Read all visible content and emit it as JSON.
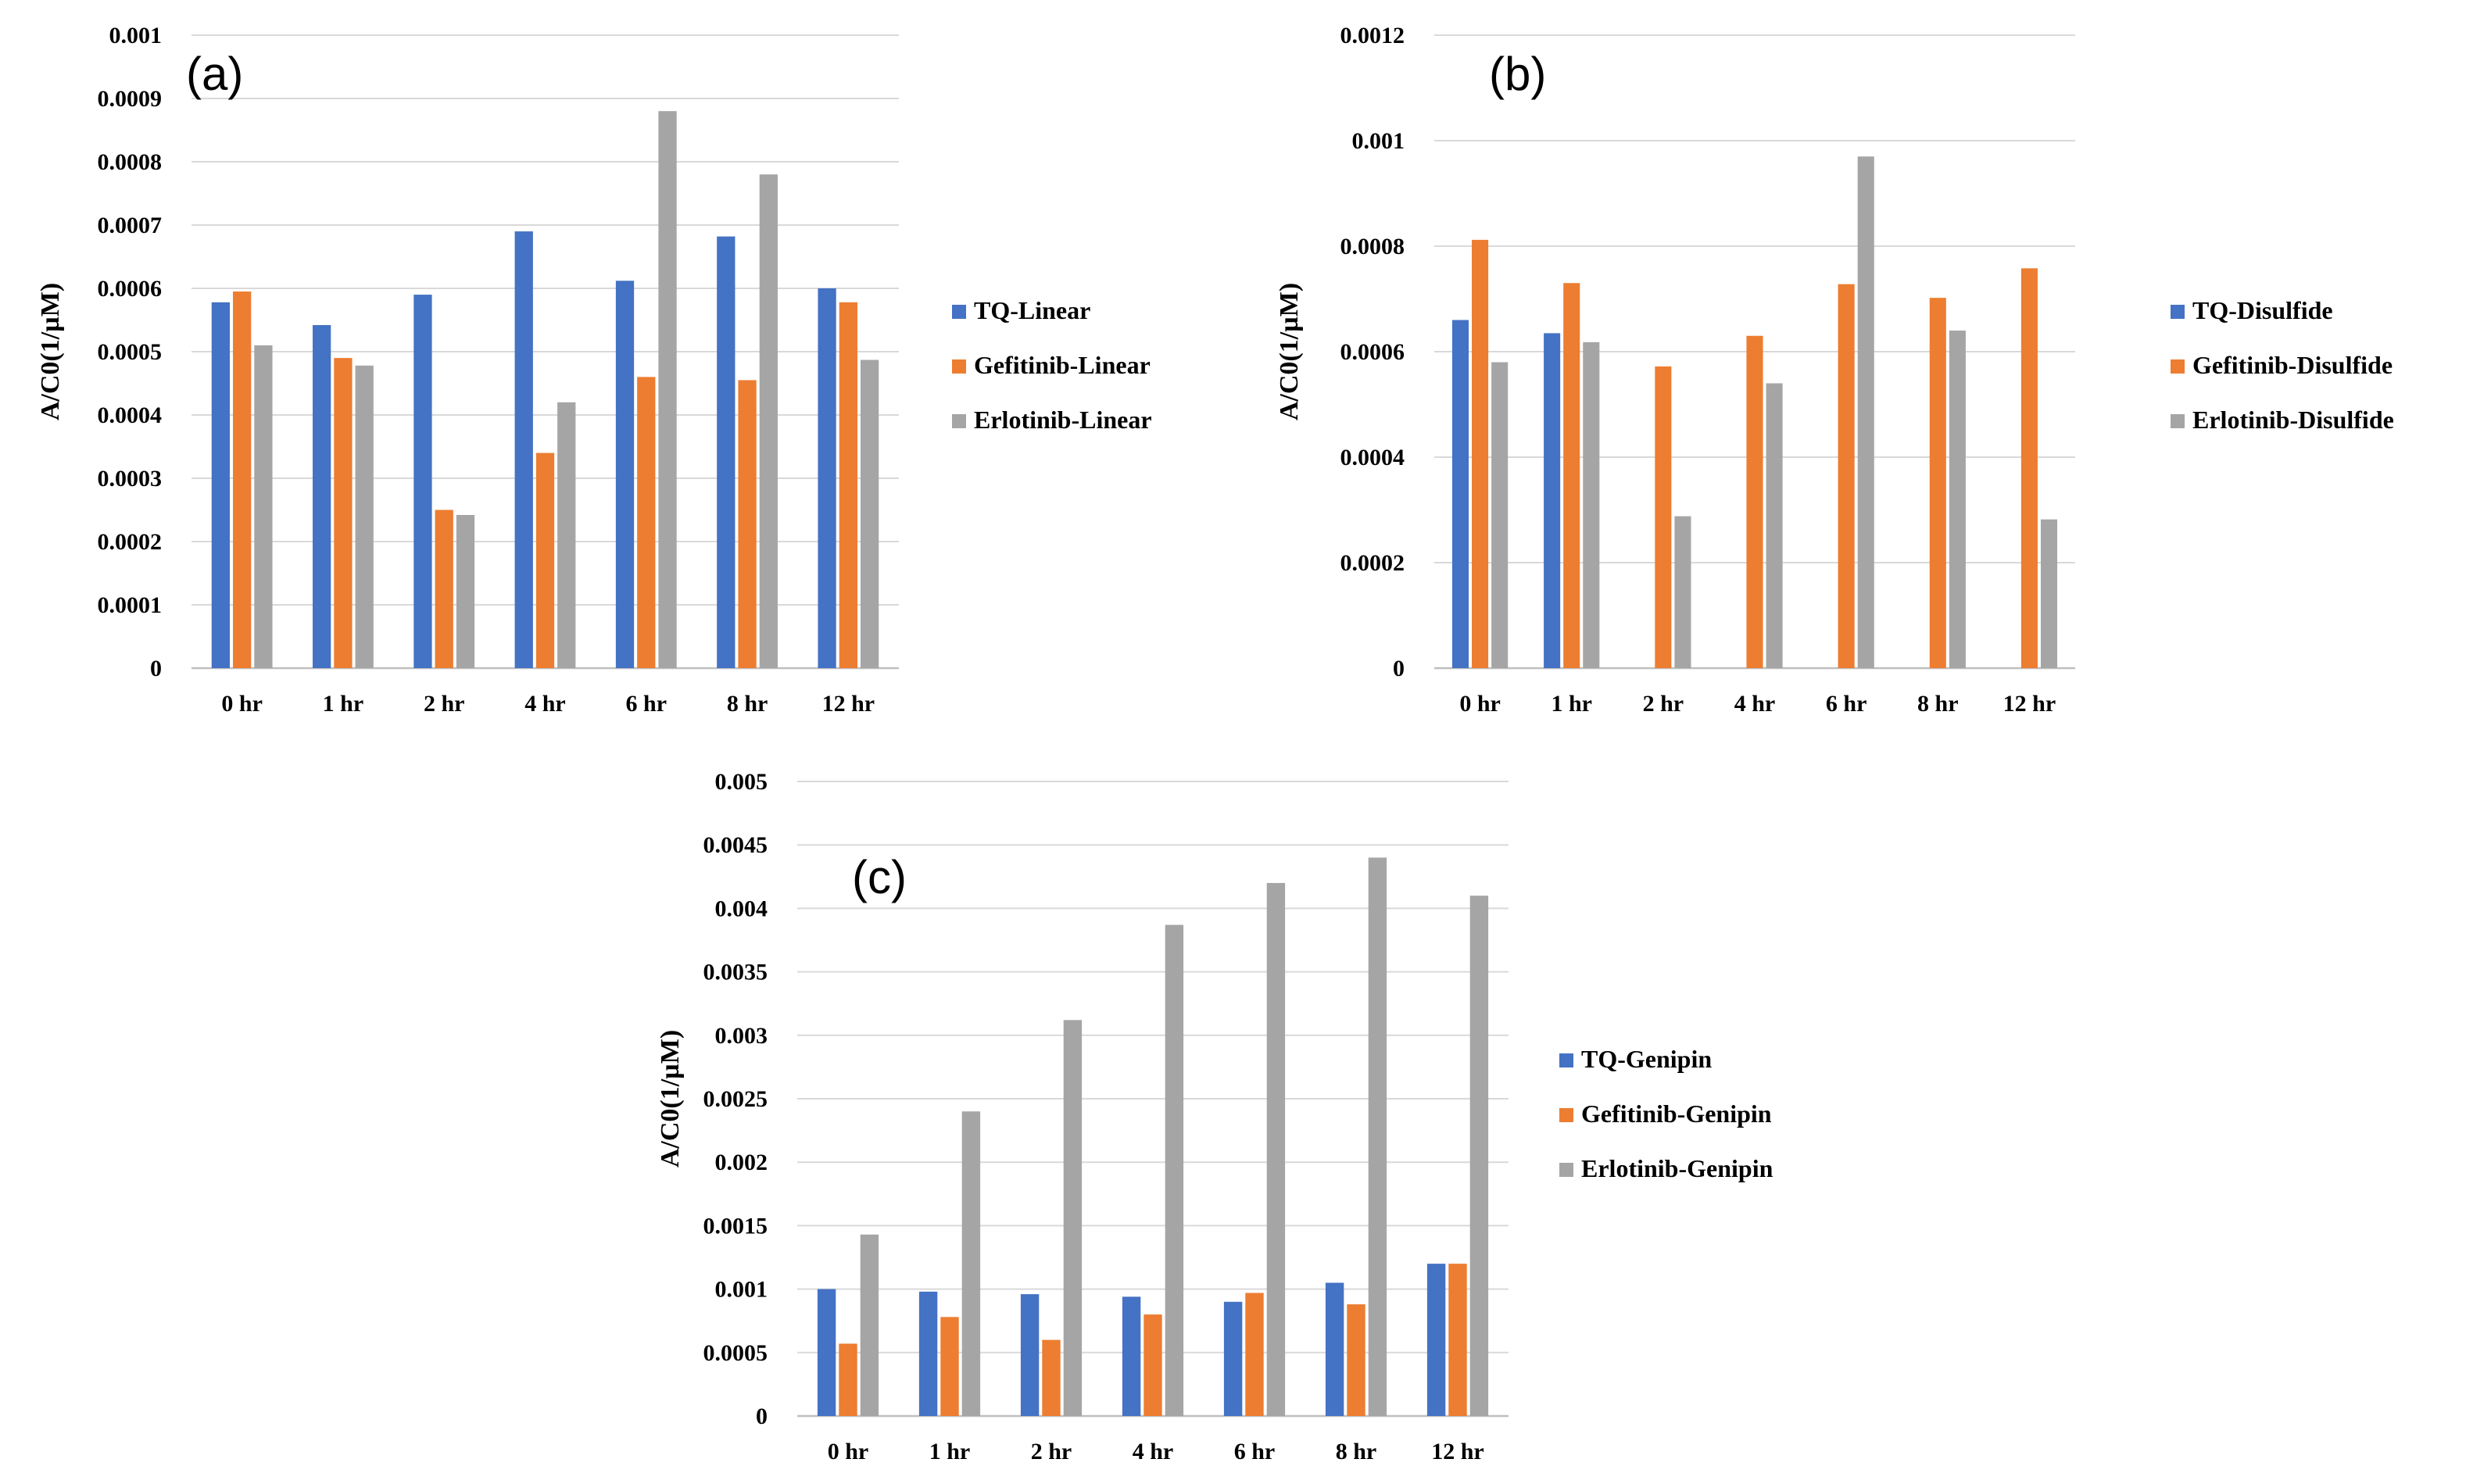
{
  "colors": {
    "tq": "#4472c4",
    "gefitinib": "#ed7d31",
    "erlotinib": "#a5a5a5"
  },
  "chart_data": [
    {
      "type": "bar",
      "panel_label": "(a)",
      "ylabel": "A/C0(1/µM)",
      "categories": [
        "0 hr",
        "1 hr",
        "2 hr",
        "4 hr",
        "6 hr",
        "8 hr",
        "12 hr"
      ],
      "ylim": [
        0,
        0.001
      ],
      "yticks": [
        "0",
        "0.0001",
        "0.0002",
        "0.0003",
        "0.0004",
        "0.0005",
        "0.0006",
        "0.0007",
        "0.0008",
        "0.0009",
        "0.001"
      ],
      "grid": true,
      "legend_position": "right",
      "series": [
        {
          "name": "TQ-Linear",
          "color": "#4472c4",
          "values": [
            0.000578,
            0.000542,
            0.00059,
            0.00069,
            0.000612,
            0.000682,
            0.0006
          ]
        },
        {
          "name": "Gefitinib-Linear",
          "color": "#ed7d31",
          "values": [
            0.000595,
            0.00049,
            0.00025,
            0.00034,
            0.00046,
            0.000455,
            0.000578
          ]
        },
        {
          "name": "Erlotinib-Linear",
          "color": "#a5a5a5",
          "values": [
            0.00051,
            0.000478,
            0.000242,
            0.00042,
            0.00088,
            0.00078,
            0.000487
          ]
        }
      ]
    },
    {
      "type": "bar",
      "panel_label": "(b)",
      "ylabel": "A/C0(1/µM)",
      "categories": [
        "0 hr",
        "1 hr",
        "2 hr",
        "4 hr",
        "6 hr",
        "8 hr",
        "12 hr"
      ],
      "ylim": [
        0,
        0.0012
      ],
      "yticks": [
        "0",
        "0.0002",
        "0.0004",
        "0.0006",
        "0.0008",
        "0.001",
        "0.0012"
      ],
      "grid": true,
      "legend_position": "right",
      "series": [
        {
          "name": "TQ-Disulfide",
          "color": "#4472c4",
          "values": [
            0.00066,
            0.000635,
            0,
            0,
            0,
            0,
            0
          ]
        },
        {
          "name": "Gefitinib-Disulfide",
          "color": "#ed7d31",
          "values": [
            0.000812,
            0.00073,
            0.000572,
            0.00063,
            0.000728,
            0.000702,
            0.000758
          ]
        },
        {
          "name": "Erlotinib-Disulfide",
          "color": "#a5a5a5",
          "values": [
            0.00058,
            0.000618,
            0.000288,
            0.00054,
            0.00097,
            0.00064,
            0.000282
          ]
        }
      ]
    },
    {
      "type": "bar",
      "panel_label": "(c)",
      "ylabel": "A/C0(1/µM)",
      "categories": [
        "0 hr",
        "1 hr",
        "2 hr",
        "4 hr",
        "6 hr",
        "8 hr",
        "12 hr"
      ],
      "ylim": [
        0,
        0.005
      ],
      "yticks": [
        "0",
        "0.0005",
        "0.001",
        "0.0015",
        "0.002",
        "0.0025",
        "0.003",
        "0.0035",
        "0.004",
        "0.0045",
        "0.005"
      ],
      "grid": true,
      "legend_position": "right",
      "series": [
        {
          "name": "TQ-Genipin",
          "color": "#4472c4",
          "values": [
            0.001,
            0.00098,
            0.00096,
            0.00094,
            0.0009,
            0.00105,
            0.0012
          ]
        },
        {
          "name": "Gefitinib-Genipin",
          "color": "#ed7d31",
          "values": [
            0.00057,
            0.00078,
            0.0006,
            0.0008,
            0.00097,
            0.00088,
            0.0012
          ]
        },
        {
          "name": "Erlotinib-Genipin",
          "color": "#a5a5a5",
          "values": [
            0.00143,
            0.0024,
            0.00312,
            0.00387,
            0.0042,
            0.0044,
            0.0041
          ]
        }
      ]
    }
  ]
}
